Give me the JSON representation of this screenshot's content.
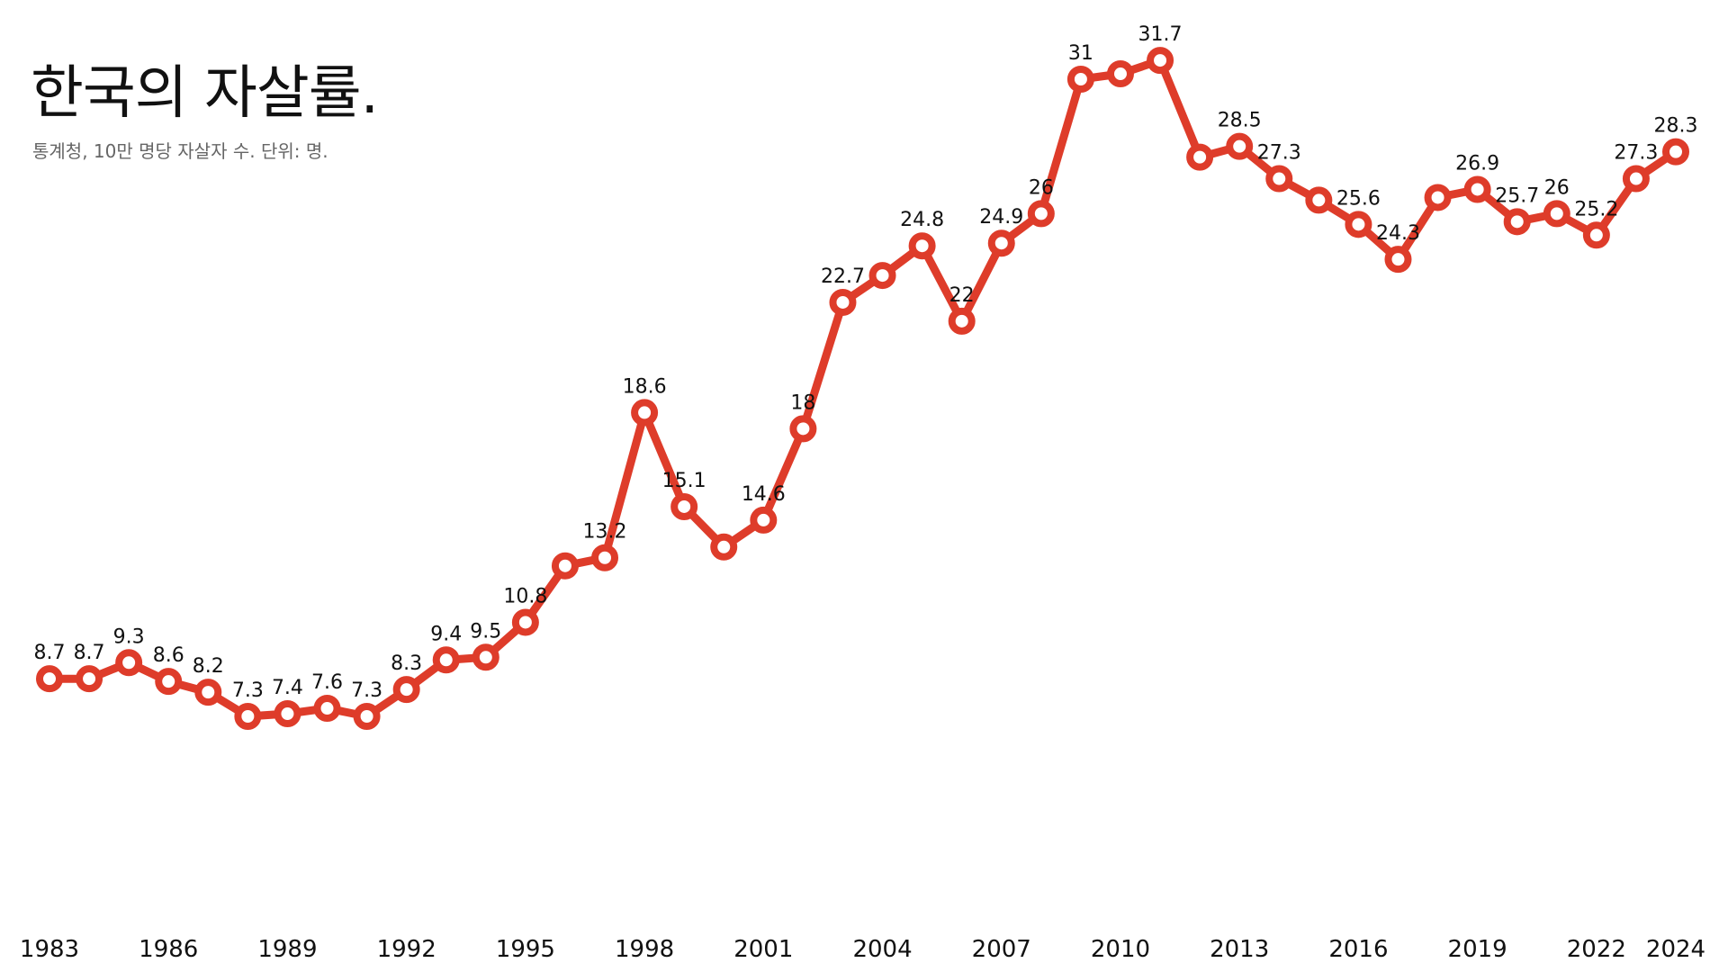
{
  "header": {
    "title": "한국의 자살률.",
    "subtitle": "통계청, 10만 명당 자살자 수. 단위: 명."
  },
  "colors": {
    "line": "#de3c2a",
    "marker_fill": "#ffffff",
    "text": "#111111",
    "subtitle": "#666666"
  },
  "chart_data": {
    "type": "line",
    "title": "한국의 자살률.",
    "subtitle": "통계청, 10만 명당 자살자 수. 단위: 명.",
    "x": [
      1983,
      1984,
      1985,
      1986,
      1987,
      1988,
      1989,
      1990,
      1991,
      1992,
      1993,
      1994,
      1995,
      1996,
      1997,
      1998,
      1999,
      2000,
      2001,
      2002,
      2003,
      2004,
      2005,
      2006,
      2007,
      2008,
      2009,
      2010,
      2011,
      2012,
      2013,
      2014,
      2015,
      2016,
      2017,
      2018,
      2019,
      2020,
      2021,
      2022,
      2023,
      2024
    ],
    "values": [
      8.7,
      8.7,
      9.3,
      8.6,
      8.2,
      7.3,
      7.4,
      7.6,
      7.3,
      8.3,
      9.4,
      9.5,
      10.8,
      12.9,
      13.2,
      18.6,
      15.1,
      13.6,
      14.6,
      18,
      22.7,
      23.7,
      24.8,
      22,
      24.9,
      26,
      31,
      31.2,
      31.7,
      28.1,
      28.5,
      27.3,
      26.5,
      25.6,
      24.3,
      26.6,
      26.9,
      25.7,
      26,
      25.2,
      27.3,
      28.3
    ],
    "labeled_years": [
      1983,
      1984,
      1985,
      1986,
      1987,
      1988,
      1989,
      1990,
      1991,
      1992,
      1993,
      1994,
      1995,
      1997,
      1998,
      1999,
      2001,
      2002,
      2003,
      2005,
      2006,
      2007,
      2008,
      2009,
      2011,
      2013,
      2014,
      2016,
      2017,
      2019,
      2020,
      2021,
      2022,
      2023,
      2024
    ],
    "xticks": [
      1983,
      1986,
      1989,
      1992,
      1995,
      1998,
      2001,
      2004,
      2007,
      2010,
      2013,
      2016,
      2019,
      2022,
      2024
    ],
    "ylim": [
      0,
      35
    ],
    "grid": false,
    "legend": "none"
  }
}
